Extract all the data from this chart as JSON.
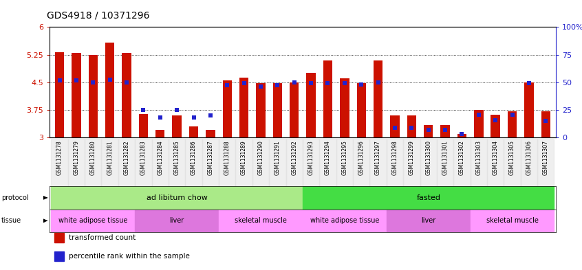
{
  "title": "GDS4918 / 10371296",
  "samples": [
    "GSM1131278",
    "GSM1131279",
    "GSM1131280",
    "GSM1131281",
    "GSM1131282",
    "GSM1131283",
    "GSM1131284",
    "GSM1131285",
    "GSM1131286",
    "GSM1131287",
    "GSM1131288",
    "GSM1131289",
    "GSM1131290",
    "GSM1131291",
    "GSM1131292",
    "GSM1131293",
    "GSM1131294",
    "GSM1131295",
    "GSM1131296",
    "GSM1131297",
    "GSM1131298",
    "GSM1131299",
    "GSM1131300",
    "GSM1131301",
    "GSM1131302",
    "GSM1131303",
    "GSM1131304",
    "GSM1131305",
    "GSM1131306",
    "GSM1131307"
  ],
  "bar_values": [
    5.32,
    5.3,
    5.25,
    5.58,
    5.29,
    3.65,
    3.22,
    3.6,
    3.3,
    3.22,
    4.55,
    4.62,
    4.48,
    4.48,
    4.5,
    4.75,
    5.1,
    4.6,
    4.47,
    5.1,
    3.6,
    3.6,
    3.35,
    3.35,
    3.1,
    3.75,
    3.62,
    3.72,
    4.5,
    3.72
  ],
  "percentile_values": [
    4.55,
    4.55,
    4.5,
    4.57,
    4.5,
    3.75,
    3.55,
    3.75,
    3.55,
    3.6,
    4.43,
    4.47,
    4.38,
    4.43,
    4.5,
    4.48,
    4.48,
    4.48,
    4.45,
    4.5,
    3.27,
    3.27,
    3.22,
    3.22,
    3.1,
    3.62,
    3.47,
    3.62,
    4.48,
    3.45
  ],
  "ylim": [
    3.0,
    6.0
  ],
  "yticks_left": [
    3.0,
    3.75,
    4.5,
    5.25,
    6.0
  ],
  "yticks_right": [
    0,
    25,
    50,
    75,
    100
  ],
  "bar_color": "#cc1100",
  "dot_color": "#2222cc",
  "bar_width": 0.55,
  "ybase": 3.0,
  "protocol_groups": [
    {
      "label": "ad libitum chow",
      "start": 0,
      "end": 14,
      "color": "#aaea88"
    },
    {
      "label": "fasted",
      "start": 15,
      "end": 29,
      "color": "#44dd44"
    }
  ],
  "tissue_groups": [
    {
      "label": "white adipose tissue",
      "start": 0,
      "end": 4,
      "color": "#ff99ff"
    },
    {
      "label": "liver",
      "start": 5,
      "end": 9,
      "color": "#dd77dd"
    },
    {
      "label": "skeletal muscle",
      "start": 10,
      "end": 14,
      "color": "#ff99ff"
    },
    {
      "label": "white adipose tissue",
      "start": 15,
      "end": 19,
      "color": "#ff99ff"
    },
    {
      "label": "liver",
      "start": 20,
      "end": 24,
      "color": "#dd77dd"
    },
    {
      "label": "skeletal muscle",
      "start": 25,
      "end": 29,
      "color": "#ff99ff"
    }
  ],
  "legend_items": [
    {
      "label": "transformed count",
      "color": "#cc1100"
    },
    {
      "label": "percentile rank within the sample",
      "color": "#2222cc"
    }
  ],
  "dotted_gridlines": [
    3.75,
    4.5,
    5.25
  ],
  "left_tick_color": "#cc1100",
  "right_tick_color": "#2222cc",
  "xtick_label_fontsize": 5.5,
  "ytick_label_fontsize": 8,
  "row_label_fontsize": 7,
  "band_label_fontsize": 8,
  "tissue_label_fontsize": 7,
  "title_fontsize": 10,
  "legend_fontsize": 7.5
}
